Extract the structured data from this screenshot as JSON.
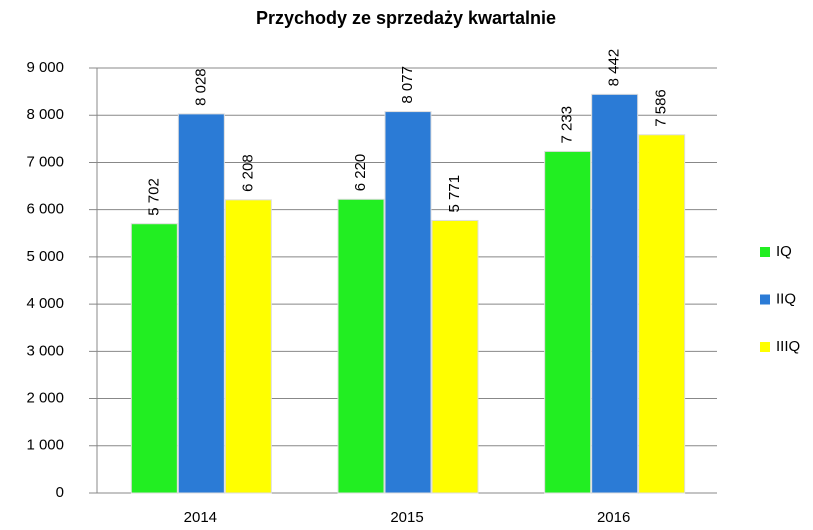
{
  "chart_data": {
    "type": "bar",
    "title": "Przychody ze sprzedaży kwartalnie",
    "categories": [
      "2014",
      "2015",
      "2016"
    ],
    "series": [
      {
        "name": "IQ",
        "color": "#22ee22",
        "values": [
          5702,
          6220,
          7233
        ],
        "value_labels": [
          "5 702",
          "6 220",
          "7 233"
        ]
      },
      {
        "name": "IIQ",
        "color": "#2b7bd6",
        "values": [
          8028,
          8077,
          8442
        ],
        "value_labels": [
          "8 028",
          "8 077",
          "8 442"
        ]
      },
      {
        "name": "IIIQ",
        "color": "#ffff00",
        "values": [
          6208,
          5771,
          7586
        ],
        "value_labels": [
          "6 208",
          "5 771",
          "7 586"
        ]
      }
    ],
    "ylim": [
      0,
      9000
    ],
    "yticks": [
      0,
      {
        "value": 1000,
        "label": "1 000"
      },
      {
        "value": 2000,
        "label": "2 000"
      },
      {
        "value": 3000,
        "label": "3 000"
      },
      {
        "value": 4000,
        "label": "4 000"
      },
      {
        "value": 5000,
        "label": "5 000"
      },
      {
        "value": 6000,
        "label": "6 000"
      },
      {
        "value": 7000,
        "label": "7 000"
      },
      {
        "value": 8000,
        "label": "8 000"
      },
      {
        "value": 9000,
        "label": "9 000"
      }
    ],
    "grid": true,
    "legend": "right"
  }
}
